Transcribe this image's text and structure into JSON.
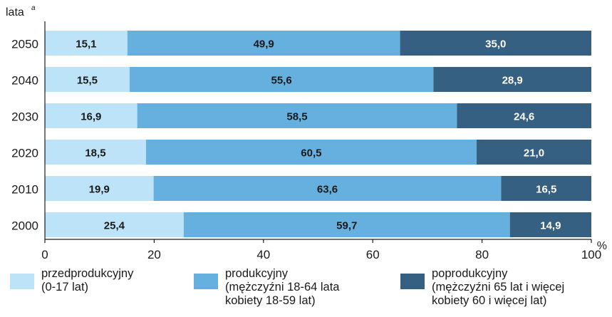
{
  "chart_data": {
    "type": "bar",
    "orientation": "horizontal",
    "stacked": true,
    "title": "",
    "ylabel": "lata",
    "ylabel_note": "a",
    "xlabel": "%",
    "xlim": [
      0,
      100
    ],
    "xticks": [
      0,
      20,
      40,
      60,
      80,
      100
    ],
    "categories": [
      "2050",
      "2040",
      "2030",
      "2020",
      "2010",
      "2000"
    ],
    "series": [
      {
        "name": "przedprodukcyjny",
        "color": "#bde3f8",
        "values": [
          15.1,
          15.5,
          16.9,
          18.5,
          19.9,
          25.4
        ],
        "labels": [
          "15,1",
          "15,5",
          "16,9",
          "18,5",
          "19,9",
          "25,4"
        ],
        "label_color": "#1a1a1a"
      },
      {
        "name": "produkcyjny",
        "color": "#66b0e0",
        "values": [
          49.9,
          55.6,
          58.5,
          60.5,
          63.6,
          59.7
        ],
        "labels": [
          "49,9",
          "55,6",
          "58,5",
          "60,5",
          "63,6",
          "59,7"
        ],
        "label_color": "#1a1a1a"
      },
      {
        "name": "poprodukcyjny",
        "color": "#356081",
        "values": [
          35.0,
          28.9,
          24.6,
          21.0,
          16.5,
          14.9
        ],
        "labels": [
          "35,0",
          "28,9",
          "24,6",
          "21,0",
          "16,5",
          "14,9"
        ],
        "label_color": "#ffffff"
      }
    ],
    "tick_labels": [
      "0",
      "20",
      "40",
      "60",
      "80",
      "100"
    ],
    "legend_placement": "bottom"
  },
  "legend": [
    {
      "lines": [
        "przedprodukcyjny",
        "(0-17 lat)"
      ]
    },
    {
      "lines": [
        "produkcyjny",
        "(mężczyźni 18-64 lata",
        "kobiety 18-59 lat)"
      ]
    },
    {
      "lines": [
        "poprodukcyjny",
        "(mężczyźni 65 lat i więcej",
        "kobiety 60 i więcej lat)"
      ]
    }
  ]
}
